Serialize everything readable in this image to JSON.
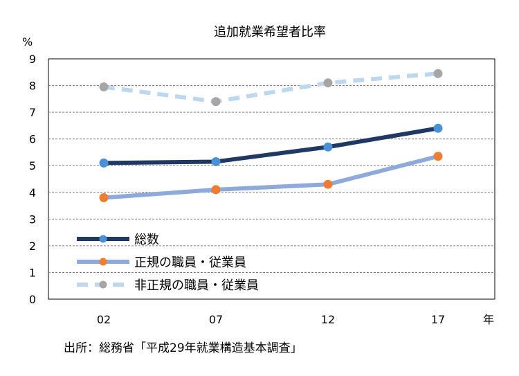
{
  "chart_data": {
    "type": "line",
    "title": "追加就業希望者比率",
    "ylabel": "%",
    "xlabel": "年",
    "ylim": [
      0,
      9
    ],
    "yticks": [
      "0",
      "1",
      "2",
      "3",
      "4",
      "5",
      "6",
      "7",
      "8",
      "9"
    ],
    "categories": [
      "02",
      "07",
      "12",
      "17"
    ],
    "grid": true,
    "legend_position": "bottom-left",
    "series": [
      {
        "name": "総数",
        "values": [
          5.1,
          5.15,
          5.7,
          6.4
        ],
        "line_color": "#1f3864",
        "marker_color": "#4a90d9",
        "style": "solid"
      },
      {
        "name": "正規の職員・従業員",
        "values": [
          3.8,
          4.1,
          4.3,
          5.35
        ],
        "line_color": "#8eaadb",
        "marker_color": "#ed7d31",
        "style": "solid"
      },
      {
        "name": "非正規の職員・従業員",
        "values": [
          7.95,
          7.4,
          8.1,
          8.45
        ],
        "line_color": "#bdd7ee",
        "marker_color": "#a6a6a6",
        "style": "dashed"
      }
    ]
  },
  "source_note": "出所：総務省「平成29年就業構造基本調査」"
}
